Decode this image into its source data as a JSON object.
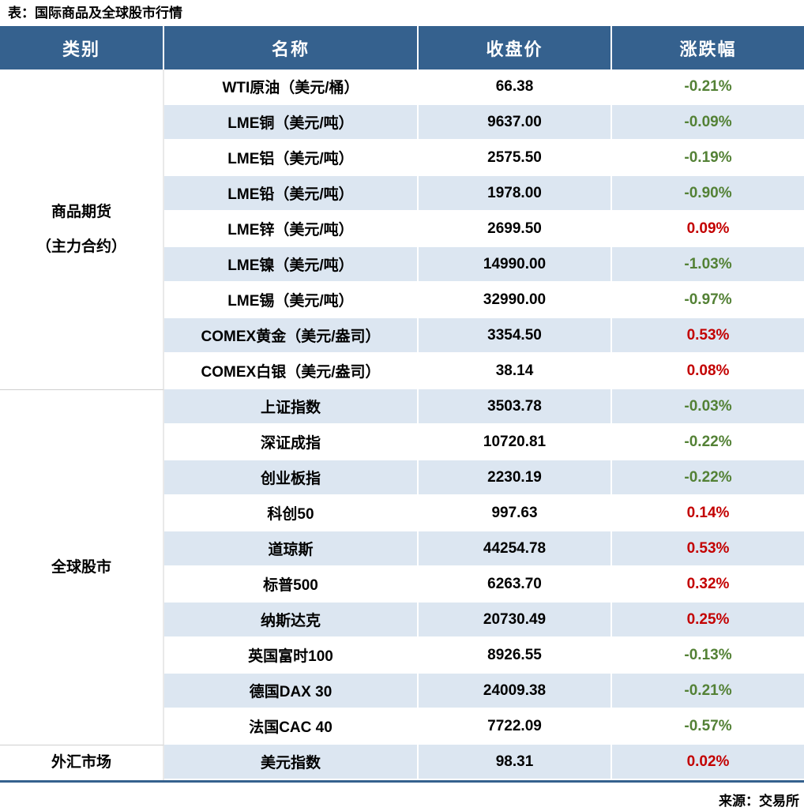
{
  "title": "表：国际商品及全球股市行情",
  "source": "来源：交易所",
  "colors": {
    "header_bg": "#35618e",
    "band_blue": "#dce6f1",
    "up_red": "#c30000",
    "down_green": "#538135",
    "bottom_rule": "#35618e"
  },
  "table": {
    "columns": [
      "类别",
      "名称",
      "收盘价",
      "涨跌幅"
    ],
    "groups": [
      {
        "category": [
          "商品期货",
          "（主力合约）"
        ],
        "rows": [
          {
            "name": "WTI原油（美元/桶）",
            "close": "66.38",
            "change": "-0.21%",
            "dir": "down"
          },
          {
            "name": "LME铜（美元/吨）",
            "close": "9637.00",
            "change": "-0.09%",
            "dir": "down"
          },
          {
            "name": "LME铝（美元/吨）",
            "close": "2575.50",
            "change": "-0.19%",
            "dir": "down"
          },
          {
            "name": "LME铅（美元/吨）",
            "close": "1978.00",
            "change": "-0.90%",
            "dir": "down"
          },
          {
            "name": "LME锌（美元/吨）",
            "close": "2699.50",
            "change": "0.09%",
            "dir": "up"
          },
          {
            "name": "LME镍（美元/吨）",
            "close": "14990.00",
            "change": "-1.03%",
            "dir": "down"
          },
          {
            "name": "LME锡（美元/吨）",
            "close": "32990.00",
            "change": "-0.97%",
            "dir": "down"
          },
          {
            "name": "COMEX黄金（美元/盎司）",
            "close": "3354.50",
            "change": "0.53%",
            "dir": "up"
          },
          {
            "name": "COMEX白银（美元/盎司）",
            "close": "38.14",
            "change": "0.08%",
            "dir": "up"
          }
        ]
      },
      {
        "category": [
          "全球股市"
        ],
        "rows": [
          {
            "name": "上证指数",
            "close": "3503.78",
            "change": "-0.03%",
            "dir": "down"
          },
          {
            "name": "深证成指",
            "close": "10720.81",
            "change": "-0.22%",
            "dir": "down"
          },
          {
            "name": "创业板指",
            "close": "2230.19",
            "change": "-0.22%",
            "dir": "down"
          },
          {
            "name": "科创50",
            "close": "997.63",
            "change": "0.14%",
            "dir": "up"
          },
          {
            "name": "道琼斯",
            "close": "44254.78",
            "change": "0.53%",
            "dir": "up"
          },
          {
            "name": "标普500",
            "close": "6263.70",
            "change": "0.32%",
            "dir": "up"
          },
          {
            "name": "纳斯达克",
            "close": "20730.49",
            "change": "0.25%",
            "dir": "up"
          },
          {
            "name": "英国富时100",
            "close": "8926.55",
            "change": "-0.13%",
            "dir": "down"
          },
          {
            "name": "德国DAX 30",
            "close": "24009.38",
            "change": "-0.21%",
            "dir": "down"
          },
          {
            "name": "法国CAC 40",
            "close": "7722.09",
            "change": "-0.57%",
            "dir": "down"
          }
        ]
      },
      {
        "category": [
          "外汇市场"
        ],
        "rows": [
          {
            "name": "美元指数",
            "close": "98.31",
            "change": "0.02%",
            "dir": "up"
          }
        ]
      }
    ]
  },
  "chart_data": {
    "type": "table",
    "title": "表：国际商品及全球股市行情",
    "source": "来源：交易所",
    "columns": [
      "类别",
      "名称",
      "收盘价",
      "涨跌幅"
    ],
    "rows": [
      [
        "商品期货（主力合约）",
        "WTI原油（美元/桶）",
        66.38,
        -0.21
      ],
      [
        "商品期货（主力合约）",
        "LME铜（美元/吨）",
        9637.0,
        -0.09
      ],
      [
        "商品期货（主力合约）",
        "LME铝（美元/吨）",
        2575.5,
        -0.19
      ],
      [
        "商品期货（主力合约）",
        "LME铅（美元/吨）",
        1978.0,
        -0.9
      ],
      [
        "商品期货（主力合约）",
        "LME锌（美元/吨）",
        2699.5,
        0.09
      ],
      [
        "商品期货（主力合约）",
        "LME镍（美元/吨）",
        14990.0,
        -1.03
      ],
      [
        "商品期货（主力合约）",
        "LME锡（美元/吨）",
        32990.0,
        -0.97
      ],
      [
        "商品期货（主力合约）",
        "COMEX黄金（美元/盎司）",
        3354.5,
        0.53
      ],
      [
        "商品期货（主力合约）",
        "COMEX白银（美元/盎司）",
        38.14,
        0.08
      ],
      [
        "全球股市",
        "上证指数",
        3503.78,
        -0.03
      ],
      [
        "全球股市",
        "深证成指",
        10720.81,
        -0.22
      ],
      [
        "全球股市",
        "创业板指",
        2230.19,
        -0.22
      ],
      [
        "全球股市",
        "科创50",
        997.63,
        0.14
      ],
      [
        "全球股市",
        "道琼斯",
        44254.78,
        0.53
      ],
      [
        "全球股市",
        "标普500",
        6263.7,
        0.32
      ],
      [
        "全球股市",
        "纳斯达克",
        20730.49,
        0.25
      ],
      [
        "全球股市",
        "英国富时100",
        8926.55,
        -0.13
      ],
      [
        "全球股市",
        "德国DAX 30",
        24009.38,
        -0.21
      ],
      [
        "全球股市",
        "法国CAC 40",
        7722.09,
        -0.57
      ],
      [
        "外汇市场",
        "美元指数",
        98.31,
        0.02
      ]
    ],
    "notes": "涨跌幅 units: percent. Negative values rendered green, positive values rendered red."
  }
}
